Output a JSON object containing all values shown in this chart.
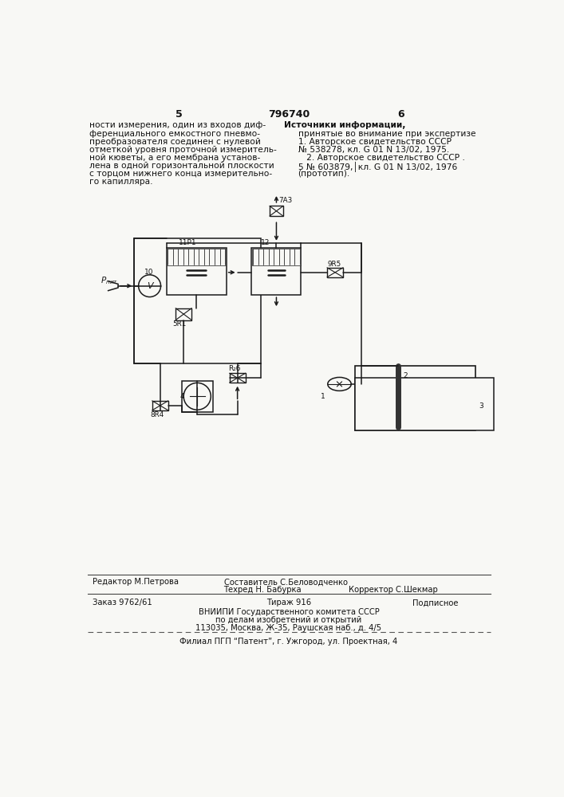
{
  "page_number_left": "5",
  "page_number_center": "796740",
  "page_number_right": "6",
  "left_text": [
    "ности измерения, один из входов диф-",
    "ференциального емкостного пневмо-",
    "преобразователя соединен с нулевой",
    "отметкой уровня проточной измеритель-",
    "ной кюветы, а его мембрана установ-",
    "лена в одной горизонтальной плоскости",
    "с торцом нижнего конца измерительно-",
    "го капилляра."
  ],
  "right_text_title": "Источники информации,",
  "right_text_subtitle": "принятые во внимание при экспертизе",
  "right_text_body": [
    "1. Авторское свидетельство СССР",
    "№ 538278, кл. G 01 N 13/02, 1975.",
    "   2. Авторское свидетельство СССР .",
    "5 № 603879,│кл. G 01 N 13/02, 1976",
    "(прототип)."
  ],
  "footer_line1_col1": "Редактор М.Петрова",
  "footer_line1_col2": "Составитель С.Беловодченко",
  "footer_line2_col2": "Техред Н. Бабурка",
  "footer_line2_col3": "Корректор С.Шекмар",
  "footer_line3_col1": "Заказ 9762/61",
  "footer_line3_col2": "Тираж 916",
  "footer_line3_col3": "Подписное",
  "footer_line4": "ВНИИПИ Государственного комитета СССР",
  "footer_line5": "по делам изобретений и открытий",
  "footer_line6": "113035, Москва, Ж-35, Раушская наб., д. 4/5",
  "footer_line7": "Филиал ПГП “Патент”, г. Ужгород, ул. Проектная, 4",
  "bg_color": "#f8f8f5"
}
